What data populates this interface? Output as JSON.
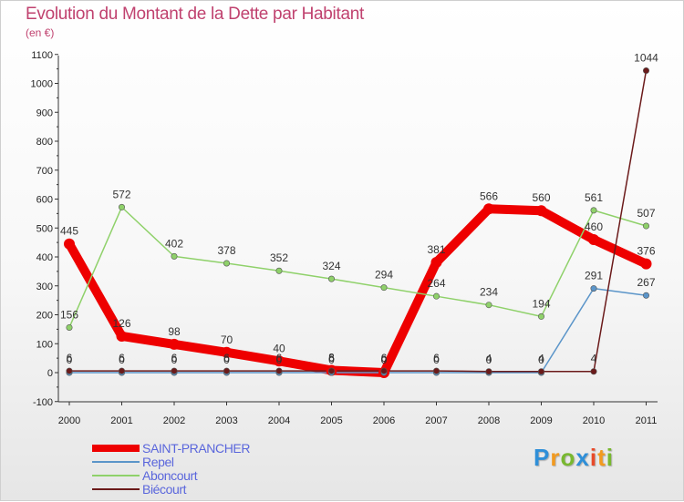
{
  "chart_data": {
    "type": "line",
    "title": "Evolution du Montant de la Dette par Habitant",
    "subtitle": "(en €)",
    "xlabel": "",
    "ylabel": "",
    "categories": [
      "2000",
      "2001",
      "2002",
      "2003",
      "2004",
      "2005",
      "2006",
      "2007",
      "2008",
      "2009",
      "2010",
      "2011"
    ],
    "ylim": [
      -100,
      1100
    ],
    "yticks": [
      -100,
      0,
      100,
      200,
      300,
      400,
      500,
      600,
      700,
      800,
      900,
      1000,
      1100
    ],
    "grid": false,
    "legend_position": "bottom-left",
    "series": [
      {
        "name": "SAINT-PRANCHER",
        "color": "#ee0000",
        "values": [
          445,
          126,
          98,
          70,
          40,
          8,
          0,
          381,
          566,
          560,
          460,
          376
        ]
      },
      {
        "name": "Repel",
        "color": "#5b95c9",
        "values": [
          0,
          0,
          0,
          0,
          0,
          0,
          0,
          0,
          0,
          0,
          291,
          267
        ]
      },
      {
        "name": "Aboncourt",
        "color": "#8fd16a",
        "values": [
          156,
          572,
          402,
          378,
          352,
          324,
          294,
          264,
          234,
          194,
          561,
          507
        ]
      },
      {
        "name": "Biécourt",
        "color": "#6b1a1a",
        "values": [
          6,
          6,
          6,
          6,
          6,
          6,
          6,
          6,
          4,
          4,
          4,
          1044
        ]
      }
    ],
    "annotations": [
      {
        "series": 0,
        "labels": [
          "445",
          "126",
          "98",
          "70",
          "40",
          "8",
          "0",
          "381",
          "566",
          "560",
          "460",
          "376"
        ]
      },
      {
        "series": 1,
        "labels": [
          "0",
          "0",
          "0",
          "0",
          "0",
          "0",
          "0",
          "0",
          "0",
          "0",
          "291",
          "267"
        ]
      },
      {
        "series": 2,
        "labels": [
          "156",
          "572",
          "402",
          "378",
          "352",
          "324",
          "294",
          "264",
          "234",
          "194",
          "561",
          "507"
        ]
      },
      {
        "series": 3,
        "labels": [
          "6",
          "6",
          "6",
          "6",
          "6",
          "6",
          "6",
          "6",
          "4",
          "4",
          "4",
          "1044"
        ]
      }
    ]
  },
  "logo": {
    "letters": [
      "P",
      "r",
      "o",
      "x",
      "i",
      "t",
      "i"
    ],
    "colors": [
      "#2f8fd8",
      "#f29a1f",
      "#79b830",
      "#2f8fd8",
      "#e84a2a",
      "#f29a1f",
      "#79b830"
    ]
  }
}
